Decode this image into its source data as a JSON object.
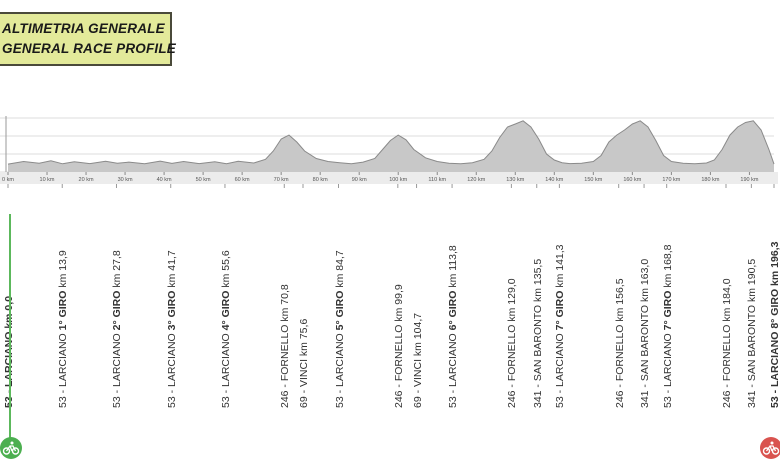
{
  "header": {
    "line1": "ALTIMETRIA GENERALE",
    "line2": "GENERAL RACE PROFILE"
  },
  "colors": {
    "profile_fill": "#c8c8c8",
    "profile_line": "#8a8a8a",
    "header_bg": "#e3ea9a",
    "start": "#4caf50",
    "finish": "#d9534f"
  },
  "chart_data": {
    "type": "area",
    "xlabel": "",
    "ylabel": "",
    "xlim": [
      0,
      196.3
    ],
    "x_ticks": [
      0,
      10,
      20,
      30,
      40,
      50,
      60,
      70,
      80,
      90,
      100,
      110,
      120,
      130,
      140,
      150,
      160,
      170,
      180,
      190
    ],
    "x_tick_labels": [
      "0 km",
      "10 km",
      "20 km",
      "30 km",
      "40 km",
      "50 km",
      "60 km",
      "70 km",
      "80 km",
      "90 km",
      "100 km",
      "110 km",
      "120 km",
      "130 km",
      "140 km",
      "150 km",
      "160 km",
      "170 km",
      "180 km",
      "190 km"
    ],
    "x": [
      0,
      4,
      8,
      11,
      14,
      17,
      21,
      25,
      28,
      31,
      35,
      39,
      42,
      45,
      49,
      53,
      56,
      59,
      63,
      66,
      68,
      70,
      72,
      74,
      76,
      79,
      82,
      85,
      88,
      91,
      94,
      96,
      98,
      100,
      102,
      104,
      107,
      110,
      113,
      116,
      119,
      122,
      124,
      126,
      128,
      130,
      132,
      134,
      136,
      138,
      140,
      142,
      144,
      147,
      150,
      152,
      154,
      156,
      158,
      160,
      162,
      164,
      166,
      168,
      170,
      173,
      176,
      179,
      181,
      183,
      185,
      187,
      189,
      191,
      193,
      195,
      196.3
    ],
    "elevation": [
      53,
      70,
      58,
      75,
      55,
      68,
      56,
      72,
      58,
      66,
      55,
      73,
      57,
      70,
      56,
      69,
      55,
      72,
      60,
      85,
      140,
      220,
      246,
      200,
      140,
      90,
      70,
      62,
      55,
      66,
      90,
      150,
      210,
      246,
      215,
      150,
      95,
      70,
      58,
      55,
      62,
      85,
      140,
      230,
      300,
      320,
      341,
      300,
      220,
      120,
      80,
      62,
      56,
      58,
      70,
      110,
      200,
      246,
      280,
      320,
      341,
      300,
      210,
      110,
      70,
      58,
      55,
      60,
      80,
      150,
      246,
      300,
      330,
      341,
      280,
      150,
      53
    ]
  },
  "waypoints": [
    {
      "km": 0.0,
      "pre": "53 - LARCIANO km ",
      "giro": "",
      "km_label": "0,0",
      "bold_all": true
    },
    {
      "km": 13.9,
      "pre": "53 - LARCIANO ",
      "giro": "1° GIRO",
      "km_label": " km 13,9",
      "bold_all": false
    },
    {
      "km": 27.8,
      "pre": "53 - LARCIANO ",
      "giro": "2° GIRO",
      "km_label": " km 27,8",
      "bold_all": false
    },
    {
      "km": 41.7,
      "pre": "53 - LARCIANO ",
      "giro": "3° GIRO",
      "km_label": " km 41,7",
      "bold_all": false
    },
    {
      "km": 55.6,
      "pre": "53 - LARCIANO ",
      "giro": "4° GIRO",
      "km_label": " km 55,6",
      "bold_all": false
    },
    {
      "km": 70.8,
      "pre": "246 - FORNELLO km 70,8",
      "giro": "",
      "km_label": "",
      "bold_all": false
    },
    {
      "km": 75.6,
      "pre": "69 - VINCI km 75,6",
      "giro": "",
      "km_label": "",
      "bold_all": false
    },
    {
      "km": 84.7,
      "pre": "53 - LARCIANO ",
      "giro": "5° GIRO",
      "km_label": " km 84,7",
      "bold_all": false
    },
    {
      "km": 99.9,
      "pre": "246 - FORNELLO km 99,9",
      "giro": "",
      "km_label": "",
      "bold_all": false
    },
    {
      "km": 104.7,
      "pre": "69 - VINCI km 104,7",
      "giro": "",
      "km_label": "",
      "bold_all": false
    },
    {
      "km": 113.8,
      "pre": "53 - LARCIANO ",
      "giro": "6° GIRO",
      "km_label": " km 113,8",
      "bold_all": false
    },
    {
      "km": 129.0,
      "pre": "246 - FORNELLO km 129,0",
      "giro": "",
      "km_label": "",
      "bold_all": false
    },
    {
      "km": 135.5,
      "pre": "341 - SAN BARONTO km 135,5",
      "giro": "",
      "km_label": "",
      "bold_all": false
    },
    {
      "km": 141.3,
      "pre": "53 - LARCIANO ",
      "giro": "7° GIRO",
      "km_label": " km 141,3",
      "bold_all": false
    },
    {
      "km": 156.5,
      "pre": "246 - FORNELLO km 156,5",
      "giro": "",
      "km_label": "",
      "bold_all": false
    },
    {
      "km": 163.0,
      "pre": "341 - SAN BARONTO km 163,0",
      "giro": "",
      "km_label": "",
      "bold_all": false
    },
    {
      "km": 168.8,
      "pre": "53 - LARCIANO ",
      "giro": "7° GIRO",
      "km_label": " km 168,8",
      "bold_all": false
    },
    {
      "km": 184.0,
      "pre": "246 - FORNELLO km 184,0",
      "giro": "",
      "km_label": "",
      "bold_all": false
    },
    {
      "km": 190.5,
      "pre": "341 - SAN BARONTO km 190,5",
      "giro": "",
      "km_label": "",
      "bold_all": false
    },
    {
      "km": 196.3,
      "pre": "53 - LARCIANO 8° GIRO km 196,3",
      "giro": "",
      "km_label": "",
      "bold_all": true
    }
  ],
  "icons": {
    "start": "start-cyclist-icon",
    "finish": "finish-cyclist-icon"
  }
}
